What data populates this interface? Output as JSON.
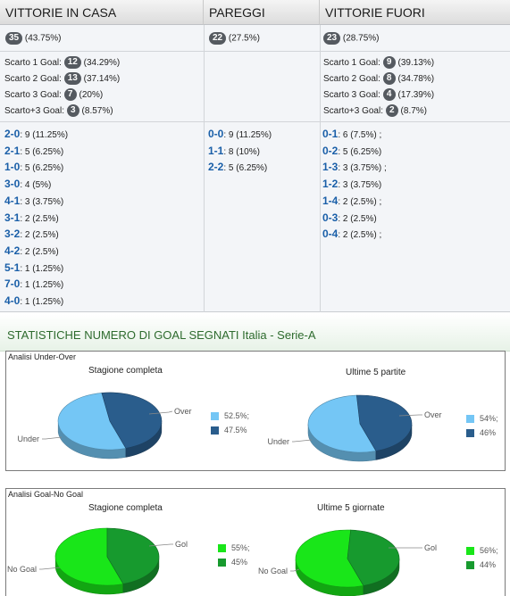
{
  "headers": {
    "home": "VITTORIE IN CASA",
    "draw": "PAREGGI",
    "away": "VITTORIE FUORI"
  },
  "totals": {
    "home": {
      "count": "35",
      "pct": "(43.75%)"
    },
    "draw": {
      "count": "22",
      "pct": "(27.5%)"
    },
    "away": {
      "count": "23",
      "pct": "(28.75%)"
    }
  },
  "margins": {
    "home": [
      {
        "label": "Scarto 1 Goal:",
        "count": "12",
        "pct": "(34.29%)"
      },
      {
        "label": "Scarto 2 Goal:",
        "count": "13",
        "pct": "(37.14%)"
      },
      {
        "label": "Scarto 3 Goal:",
        "count": "7",
        "pct": "(20%)"
      },
      {
        "label": "Scarto+3 Goal:",
        "count": "3",
        "pct": "(8.57%)"
      }
    ],
    "away": [
      {
        "label": "Scarto 1 Goal:",
        "count": "9",
        "pct": "(39.13%)"
      },
      {
        "label": "Scarto 2 Goal:",
        "count": "8",
        "pct": "(34.78%)"
      },
      {
        "label": "Scarto 3 Goal:",
        "count": "4",
        "pct": "(17.39%)"
      },
      {
        "label": "Scarto+3 Goal:",
        "count": "2",
        "pct": "(8.7%)"
      }
    ]
  },
  "scores": {
    "home": [
      {
        "score": "2-0",
        "detail": ": 9 (11.25%)"
      },
      {
        "score": "2-1",
        "detail": ": 5 (6.25%)"
      },
      {
        "score": "1-0",
        "detail": ": 5 (6.25%)"
      },
      {
        "score": "3-0",
        "detail": ": 4 (5%)"
      },
      {
        "score": "4-1",
        "detail": ": 3 (3.75%)"
      },
      {
        "score": "3-1",
        "detail": ": 2 (2.5%)"
      },
      {
        "score": "3-2",
        "detail": ": 2 (2.5%)"
      },
      {
        "score": "4-2",
        "detail": ": 2 (2.5%)"
      },
      {
        "score": "5-1",
        "detail": ": 1 (1.25%)"
      },
      {
        "score": "7-0",
        "detail": ": 1 (1.25%)"
      },
      {
        "score": "4-0",
        "detail": ": 1 (1.25%)"
      }
    ],
    "draw": [
      {
        "score": "0-0",
        "detail": ": 9 (11.25%)"
      },
      {
        "score": "1-1",
        "detail": ": 8 (10%)"
      },
      {
        "score": "2-2",
        "detail": ": 5 (6.25%)"
      }
    ],
    "away": [
      {
        "score": "0-1",
        "detail": ": 6 (7.5%) ;"
      },
      {
        "score": "0-2",
        "detail": ": 5 (6.25%)"
      },
      {
        "score": "1-3",
        "detail": ": 3 (3.75%) ;"
      },
      {
        "score": "1-2",
        "detail": ": 3 (3.75%)"
      },
      {
        "score": "1-4",
        "detail": ": 2 (2.5%) ;"
      },
      {
        "score": "0-3",
        "detail": ": 2 (2.5%)"
      },
      {
        "score": "0-4",
        "detail": ": 2 (2.5%) ;"
      }
    ]
  },
  "stats_title": "STATISTICHE NUMERO DI GOAL SEGNATI Italia - Serie-A",
  "panels": {
    "under_over": {
      "label": "Analisi Under-Over",
      "left": {
        "title": "Stagione completa",
        "a_label": "Over",
        "b_label": "Under",
        "legend_light": "52.5%;",
        "legend_dark": "47.5%"
      },
      "right": {
        "title": "Ultime 5 partite",
        "a_label": "Over",
        "b_label": "Under",
        "legend_light": "54%;",
        "legend_dark": "46%"
      }
    },
    "goal_nogoal": {
      "label": "Analisi Goal-No Goal",
      "left": {
        "title": "Stagione completa",
        "a_label": "Gol",
        "b_label": "No Goal",
        "legend_light": "55%;",
        "legend_dark": "45%"
      },
      "right": {
        "title": "Ultime 5 giornate",
        "a_label": "Gol",
        "b_label": "No Goal",
        "legend_light": "56%;",
        "legend_dark": "44%"
      }
    }
  },
  "chart_data": [
    {
      "type": "pie",
      "title": "Stagione completa",
      "categories": [
        "Under",
        "Over"
      ],
      "values": [
        52.5,
        47.5
      ],
      "colors": [
        "#74c6f5",
        "#2a5d8c"
      ]
    },
    {
      "type": "pie",
      "title": "Ultime 5 partite",
      "categories": [
        "Under",
        "Over"
      ],
      "values": [
        54,
        46
      ],
      "colors": [
        "#74c6f5",
        "#2a5d8c"
      ]
    },
    {
      "type": "pie",
      "title": "Stagione completa",
      "categories": [
        "No Goal",
        "Gol"
      ],
      "values": [
        55,
        45
      ],
      "colors": [
        "#19e619",
        "#179a2e"
      ]
    },
    {
      "type": "pie",
      "title": "Ultime 5 giornate",
      "categories": [
        "No Goal",
        "Gol"
      ],
      "values": [
        56,
        44
      ],
      "colors": [
        "#19e619",
        "#179a2e"
      ]
    }
  ]
}
